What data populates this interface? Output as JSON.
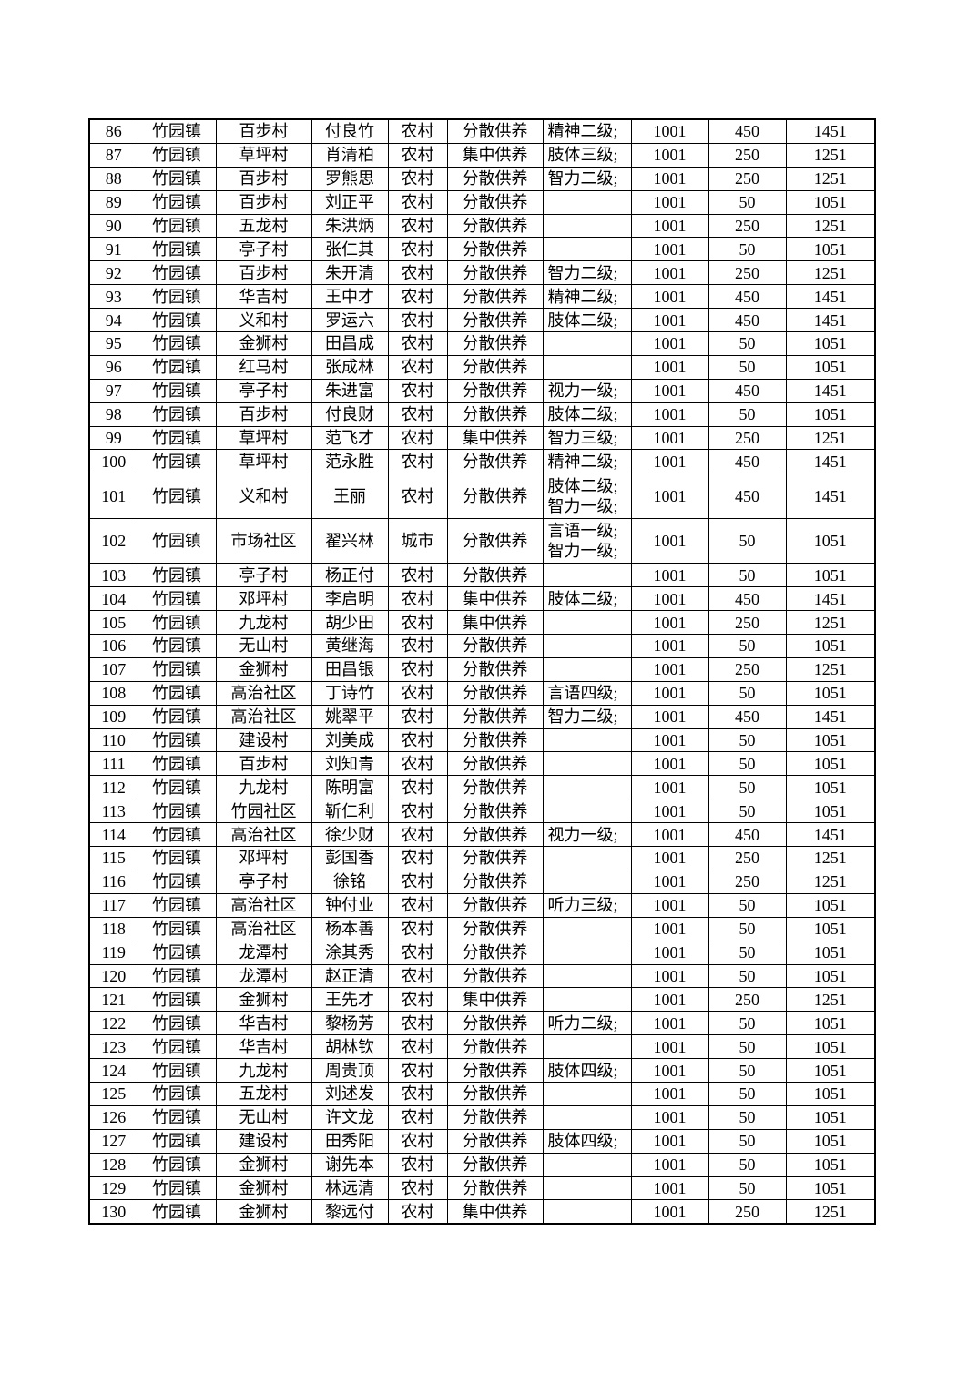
{
  "table": {
    "rows": [
      [
        "86",
        "竹园镇",
        "百步村",
        "付良竹",
        "农村",
        "分散供养",
        "精神二级;",
        "1001",
        "450",
        "1451"
      ],
      [
        "87",
        "竹园镇",
        "草坪村",
        "肖清柏",
        "农村",
        "集中供养",
        "肢体三级;",
        "1001",
        "250",
        "1251"
      ],
      [
        "88",
        "竹园镇",
        "百步村",
        "罗熊思",
        "农村",
        "分散供养",
        "智力二级;",
        "1001",
        "250",
        "1251"
      ],
      [
        "89",
        "竹园镇",
        "百步村",
        "刘正平",
        "农村",
        "分散供养",
        "",
        "1001",
        "50",
        "1051"
      ],
      [
        "90",
        "竹园镇",
        "五龙村",
        "朱洪炳",
        "农村",
        "分散供养",
        "",
        "1001",
        "250",
        "1251"
      ],
      [
        "91",
        "竹园镇",
        "亭子村",
        "张仁其",
        "农村",
        "分散供养",
        "",
        "1001",
        "50",
        "1051"
      ],
      [
        "92",
        "竹园镇",
        "百步村",
        "朱开清",
        "农村",
        "分散供养",
        "智力二级;",
        "1001",
        "250",
        "1251"
      ],
      [
        "93",
        "竹园镇",
        "华吉村",
        "王中才",
        "农村",
        "分散供养",
        "精神二级;",
        "1001",
        "450",
        "1451"
      ],
      [
        "94",
        "竹园镇",
        "义和村",
        "罗运六",
        "农村",
        "分散供养",
        "肢体二级;",
        "1001",
        "450",
        "1451"
      ],
      [
        "95",
        "竹园镇",
        "金狮村",
        "田昌成",
        "农村",
        "分散供养",
        "",
        "1001",
        "50",
        "1051"
      ],
      [
        "96",
        "竹园镇",
        "红马村",
        "张成林",
        "农村",
        "分散供养",
        "",
        "1001",
        "50",
        "1051"
      ],
      [
        "97",
        "竹园镇",
        "亭子村",
        "朱进富",
        "农村",
        "分散供养",
        "视力一级;",
        "1001",
        "450",
        "1451"
      ],
      [
        "98",
        "竹园镇",
        "百步村",
        "付良财",
        "农村",
        "分散供养",
        "肢体二级;",
        "1001",
        "50",
        "1051"
      ],
      [
        "99",
        "竹园镇",
        "草坪村",
        "范飞才",
        "农村",
        "集中供养",
        "智力三级;",
        "1001",
        "250",
        "1251"
      ],
      [
        "100",
        "竹园镇",
        "草坪村",
        "范永胜",
        "农村",
        "分散供养",
        "精神二级;",
        "1001",
        "450",
        "1451"
      ],
      [
        "101",
        "竹园镇",
        "义和村",
        "王丽",
        "农村",
        "分散供养",
        "肢体二级;\n智力一级;",
        "1001",
        "450",
        "1451"
      ],
      [
        "102",
        "竹园镇",
        "市场社区",
        "翟兴林",
        "城市",
        "分散供养",
        "言语一级;\n智力一级;",
        "1001",
        "50",
        "1051"
      ],
      [
        "103",
        "竹园镇",
        "亭子村",
        "杨正付",
        "农村",
        "分散供养",
        "",
        "1001",
        "50",
        "1051"
      ],
      [
        "104",
        "竹园镇",
        "邓坪村",
        "李启明",
        "农村",
        "集中供养",
        "肢体二级;",
        "1001",
        "450",
        "1451"
      ],
      [
        "105",
        "竹园镇",
        "九龙村",
        "胡少田",
        "农村",
        "集中供养",
        "",
        "1001",
        "250",
        "1251"
      ],
      [
        "106",
        "竹园镇",
        "无山村",
        "黄继海",
        "农村",
        "分散供养",
        "",
        "1001",
        "50",
        "1051"
      ],
      [
        "107",
        "竹园镇",
        "金狮村",
        "田昌银",
        "农村",
        "分散供养",
        "",
        "1001",
        "250",
        "1251"
      ],
      [
        "108",
        "竹园镇",
        "高治社区",
        "丁诗竹",
        "农村",
        "分散供养",
        "言语四级;",
        "1001",
        "50",
        "1051"
      ],
      [
        "109",
        "竹园镇",
        "高治社区",
        "姚翠平",
        "农村",
        "分散供养",
        "智力二级;",
        "1001",
        "450",
        "1451"
      ],
      [
        "110",
        "竹园镇",
        "建设村",
        "刘美成",
        "农村",
        "分散供养",
        "",
        "1001",
        "50",
        "1051"
      ],
      [
        "111",
        "竹园镇",
        "百步村",
        "刘知青",
        "农村",
        "分散供养",
        "",
        "1001",
        "50",
        "1051"
      ],
      [
        "112",
        "竹园镇",
        "九龙村",
        "陈明富",
        "农村",
        "分散供养",
        "",
        "1001",
        "50",
        "1051"
      ],
      [
        "113",
        "竹园镇",
        "竹园社区",
        "靳仁利",
        "农村",
        "分散供养",
        "",
        "1001",
        "50",
        "1051"
      ],
      [
        "114",
        "竹园镇",
        "高治社区",
        "徐少财",
        "农村",
        "分散供养",
        "视力一级;",
        "1001",
        "450",
        "1451"
      ],
      [
        "115",
        "竹园镇",
        "邓坪村",
        "彭国香",
        "农村",
        "分散供养",
        "",
        "1001",
        "250",
        "1251"
      ],
      [
        "116",
        "竹园镇",
        "亭子村",
        "徐铭",
        "农村",
        "分散供养",
        "",
        "1001",
        "250",
        "1251"
      ],
      [
        "117",
        "竹园镇",
        "高治社区",
        "钟付业",
        "农村",
        "分散供养",
        "听力三级;",
        "1001",
        "50",
        "1051"
      ],
      [
        "118",
        "竹园镇",
        "高治社区",
        "杨本善",
        "农村",
        "分散供养",
        "",
        "1001",
        "50",
        "1051"
      ],
      [
        "119",
        "竹园镇",
        "龙潭村",
        "涂其秀",
        "农村",
        "分散供养",
        "",
        "1001",
        "50",
        "1051"
      ],
      [
        "120",
        "竹园镇",
        "龙潭村",
        "赵正清",
        "农村",
        "分散供养",
        "",
        "1001",
        "50",
        "1051"
      ],
      [
        "121",
        "竹园镇",
        "金狮村",
        "王先才",
        "农村",
        "集中供养",
        "",
        "1001",
        "250",
        "1251"
      ],
      [
        "122",
        "竹园镇",
        "华吉村",
        "黎杨芳",
        "农村",
        "分散供养",
        "听力二级;",
        "1001",
        "50",
        "1051"
      ],
      [
        "123",
        "竹园镇",
        "华吉村",
        "胡林钦",
        "农村",
        "分散供养",
        "",
        "1001",
        "50",
        "1051"
      ],
      [
        "124",
        "竹园镇",
        "九龙村",
        "周贵顶",
        "农村",
        "分散供养",
        "肢体四级;",
        "1001",
        "50",
        "1051"
      ],
      [
        "125",
        "竹园镇",
        "五龙村",
        "刘述发",
        "农村",
        "分散供养",
        "",
        "1001",
        "50",
        "1051"
      ],
      [
        "126",
        "竹园镇",
        "无山村",
        "许文龙",
        "农村",
        "分散供养",
        "",
        "1001",
        "50",
        "1051"
      ],
      [
        "127",
        "竹园镇",
        "建设村",
        "田秀阳",
        "农村",
        "分散供养",
        "肢体四级;",
        "1001",
        "50",
        "1051"
      ],
      [
        "128",
        "竹园镇",
        "金狮村",
        "谢先本",
        "农村",
        "分散供养",
        "",
        "1001",
        "50",
        "1051"
      ],
      [
        "129",
        "竹园镇",
        "金狮村",
        "林远清",
        "农村",
        "分散供养",
        "",
        "1001",
        "50",
        "1051"
      ],
      [
        "130",
        "竹园镇",
        "金狮村",
        "黎远付",
        "农村",
        "集中供养",
        "",
        "1001",
        "250",
        "1251"
      ]
    ]
  }
}
